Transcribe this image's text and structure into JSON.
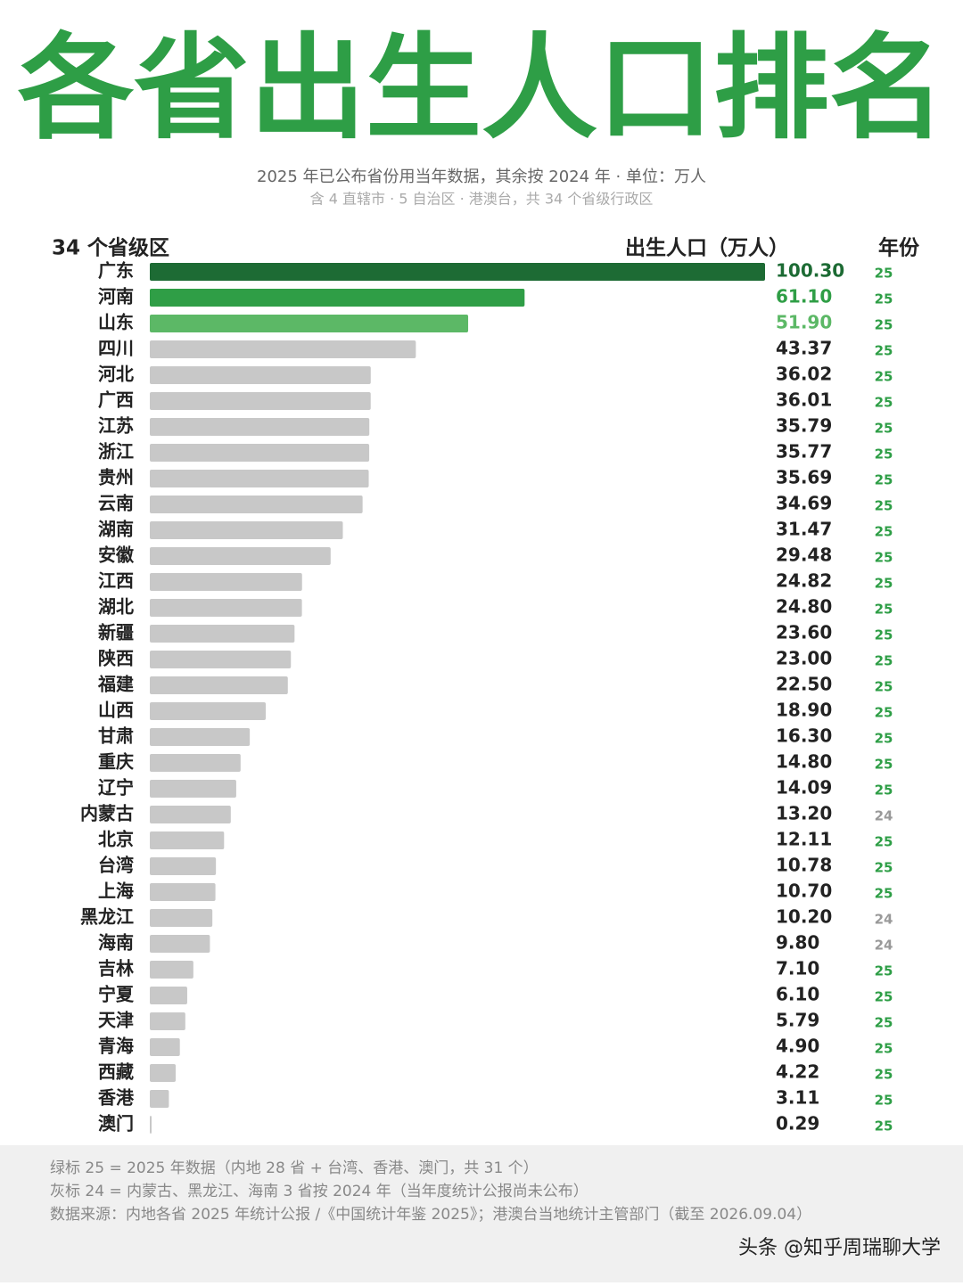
{
  "chart_data": {
    "type": "bar",
    "orientation": "horizontal",
    "title": "各省出生人口排名",
    "subtitle": "2025 年已公布省份用当年数据，其余按 2024 年 · 单位：万人",
    "subtitle2": "含 4 直辖市 · 5 自治区 · 港澳台，共 34 个省级行政区",
    "category_header": "34 个省级区",
    "value_header": "出生人口（万人）",
    "year_header": "年份",
    "categories": [
      "广东",
      "河南",
      "山东",
      "四川",
      "河北",
      "广西",
      "江苏",
      "浙江",
      "贵州",
      "云南",
      "湖南",
      "安徽",
      "江西",
      "湖北",
      "新疆",
      "陕西",
      "福建",
      "山西",
      "甘肃",
      "重庆",
      "辽宁",
      "内蒙古",
      "北京",
      "台湾",
      "上海",
      "黑龙江",
      "海南",
      "吉林",
      "宁夏",
      "天津",
      "青海",
      "西藏",
      "香港",
      "澳门"
    ],
    "values": [
      100.3,
      61.1,
      51.9,
      43.37,
      36.02,
      36.01,
      35.79,
      35.77,
      35.69,
      34.69,
      31.47,
      29.48,
      24.82,
      24.8,
      23.6,
      23.0,
      22.5,
      18.9,
      16.3,
      14.8,
      14.09,
      13.2,
      12.11,
      10.78,
      10.7,
      10.2,
      9.8,
      7.1,
      6.1,
      5.79,
      4.9,
      4.22,
      3.11,
      0.29
    ],
    "value_labels": [
      "100.30",
      "61.10",
      "51.90",
      "43.37",
      "36.02",
      "36.01",
      "35.79",
      "35.77",
      "35.69",
      "34.69",
      "31.47",
      "29.48",
      "24.82",
      "24.80",
      "23.60",
      "23.00",
      "22.50",
      "18.90",
      "16.30",
      "14.80",
      "14.09",
      "13.20",
      "12.11",
      "10.78",
      "10.70",
      "10.20",
      "9.80",
      "7.10",
      "6.10",
      "5.79",
      "4.90",
      "4.22",
      "3.11",
      "0.29"
    ],
    "years": [
      "25",
      "25",
      "25",
      "25",
      "25",
      "25",
      "25",
      "25",
      "25",
      "25",
      "25",
      "25",
      "25",
      "25",
      "25",
      "25",
      "25",
      "25",
      "25",
      "25",
      "25",
      "24",
      "25",
      "25",
      "25",
      "24",
      "24",
      "25",
      "25",
      "25",
      "25",
      "25",
      "25",
      "25"
    ],
    "colors": [
      "#1d6b34",
      "#2f9e46",
      "#5cb866",
      "#c8c8c8",
      "#c8c8c8",
      "#c8c8c8",
      "#c8c8c8",
      "#c8c8c8",
      "#c8c8c8",
      "#c8c8c8",
      "#c8c8c8",
      "#c8c8c8",
      "#c8c8c8",
      "#c8c8c8",
      "#c8c8c8",
      "#c8c8c8",
      "#c8c8c8",
      "#c8c8c8",
      "#c8c8c8",
      "#c8c8c8",
      "#c8c8c8",
      "#c8c8c8",
      "#c8c8c8",
      "#c8c8c8",
      "#c8c8c8",
      "#c8c8c8",
      "#c8c8c8",
      "#c8c8c8",
      "#c8c8c8",
      "#c8c8c8",
      "#c8c8c8",
      "#c8c8c8",
      "#c8c8c8",
      "#c8c8c8"
    ],
    "xlim": [
      0,
      100.3
    ],
    "notes": [
      "绿标 25 = 2025 年数据（内地 28 省 + 台湾、香港、澳门，共 31 个）",
      "灰标 24 = 内蒙古、黑龙江、海南 3 省按 2024 年（当年度统计公报尚未公布）",
      "数据来源：内地各省 2025 年统计公报 /《中国统计年鉴 2025》；港澳台当地统计主管部门（截至 2026.09.04）"
    ],
    "watermark": "头条 @知乎周瑞聊大学"
  }
}
